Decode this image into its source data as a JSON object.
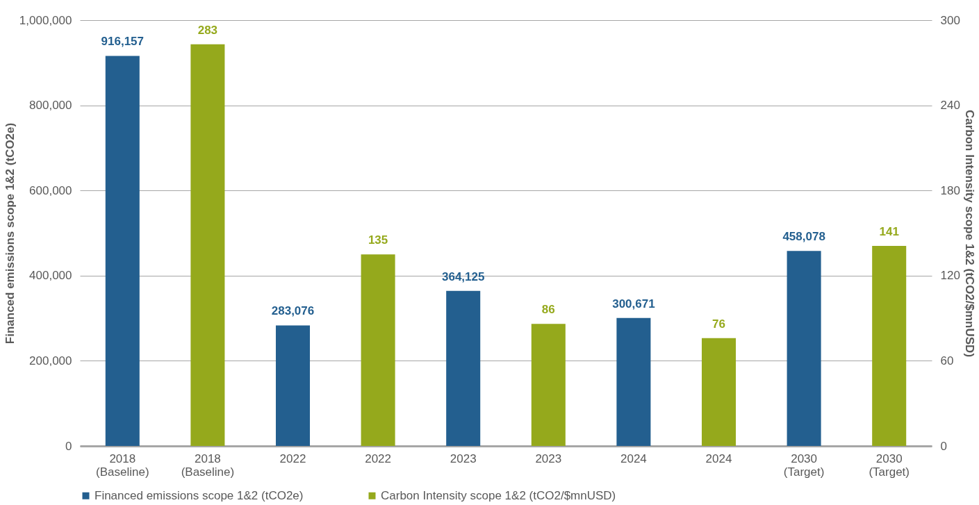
{
  "chart_data": {
    "type": "bar",
    "categories": [
      "2018\n(Baseline)",
      "2018\n(Baseline)",
      "2022",
      "2022",
      "2023",
      "2023",
      "2024",
      "2024",
      "2030\n(Target)",
      "2030\n(Target)"
    ],
    "series": [
      {
        "name": "Financed emissions scope 1&2 (tCO2e)",
        "color": "#235f8f",
        "values": [
          916157,
          null,
          283076,
          null,
          364125,
          null,
          300671,
          null,
          458078,
          null
        ],
        "value_labels": [
          "916,157",
          null,
          "283,076",
          null,
          "364,125",
          null,
          "300,671",
          null,
          "458,078",
          null
        ]
      },
      {
        "name": "Carbon Intensity scope 1&2 (tCO2/$mnUSD)",
        "color": "#95a91c",
        "axis": "y2",
        "values": [
          null,
          283,
          null,
          135,
          null,
          86,
          null,
          76,
          null,
          141
        ],
        "value_labels": [
          null,
          "283",
          null,
          "135",
          null,
          "86",
          null,
          "76",
          null,
          "141"
        ]
      }
    ],
    "ylabel": "Financed emissions scope 1&2 (tCO2e)",
    "y2label": "Carbon Intensity scope 1&2 (tCO2/$mnUSD)",
    "ylim": [
      0,
      1000000
    ],
    "yticks": [
      0,
      {
        "value": 200000,
        "label": "200,000"
      },
      {
        "value": 400000,
        "label": "400,000"
      },
      {
        "value": 600000,
        "label": "600,000"
      },
      {
        "value": 800000,
        "label": "800,000"
      },
      {
        "value": 1000000,
        "label": "1,000,000"
      }
    ],
    "y2lim": [
      0,
      300
    ],
    "y2ticks": [
      0,
      60,
      120,
      180,
      240,
      300
    ],
    "grid": "y",
    "legend": "bottom"
  }
}
